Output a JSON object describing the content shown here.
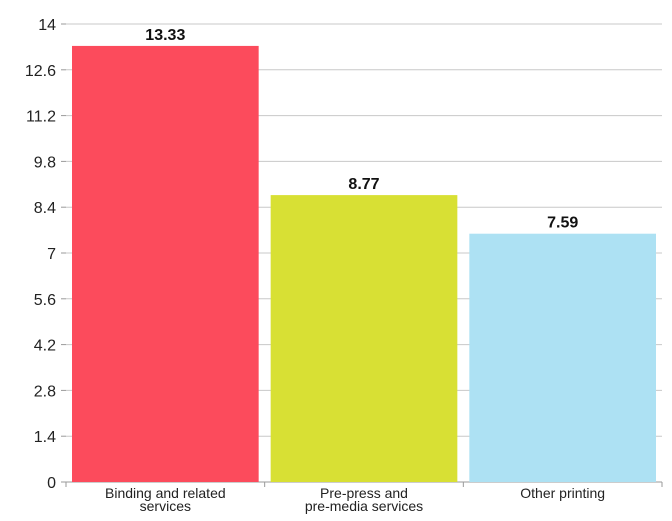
{
  "chart_data": {
    "type": "bar",
    "title": "",
    "xlabel": "",
    "ylabel": "",
    "categories": [
      [
        "Binding and related",
        "services"
      ],
      [
        "Pre-press and",
        "pre-media services"
      ],
      [
        "Other printing"
      ]
    ],
    "values": [
      13.33,
      8.77,
      7.59
    ],
    "value_labels": [
      "13.33",
      "8.77",
      "7.59"
    ],
    "bar_colors": [
      "#fc4b5c",
      "#d8e034",
      "#ade1f3"
    ],
    "ylim": [
      0,
      14
    ],
    "yticks": [
      0,
      1.4,
      2.8,
      4.2,
      5.6,
      7,
      8.4,
      9.8,
      11.2,
      12.6,
      14
    ],
    "ytick_labels": [
      "0",
      "1.4",
      "2.8",
      "4.2",
      "5.6",
      "7",
      "8.4",
      "9.8",
      "11.2",
      "12.6",
      "14"
    ],
    "grid": true,
    "legend": "none"
  }
}
